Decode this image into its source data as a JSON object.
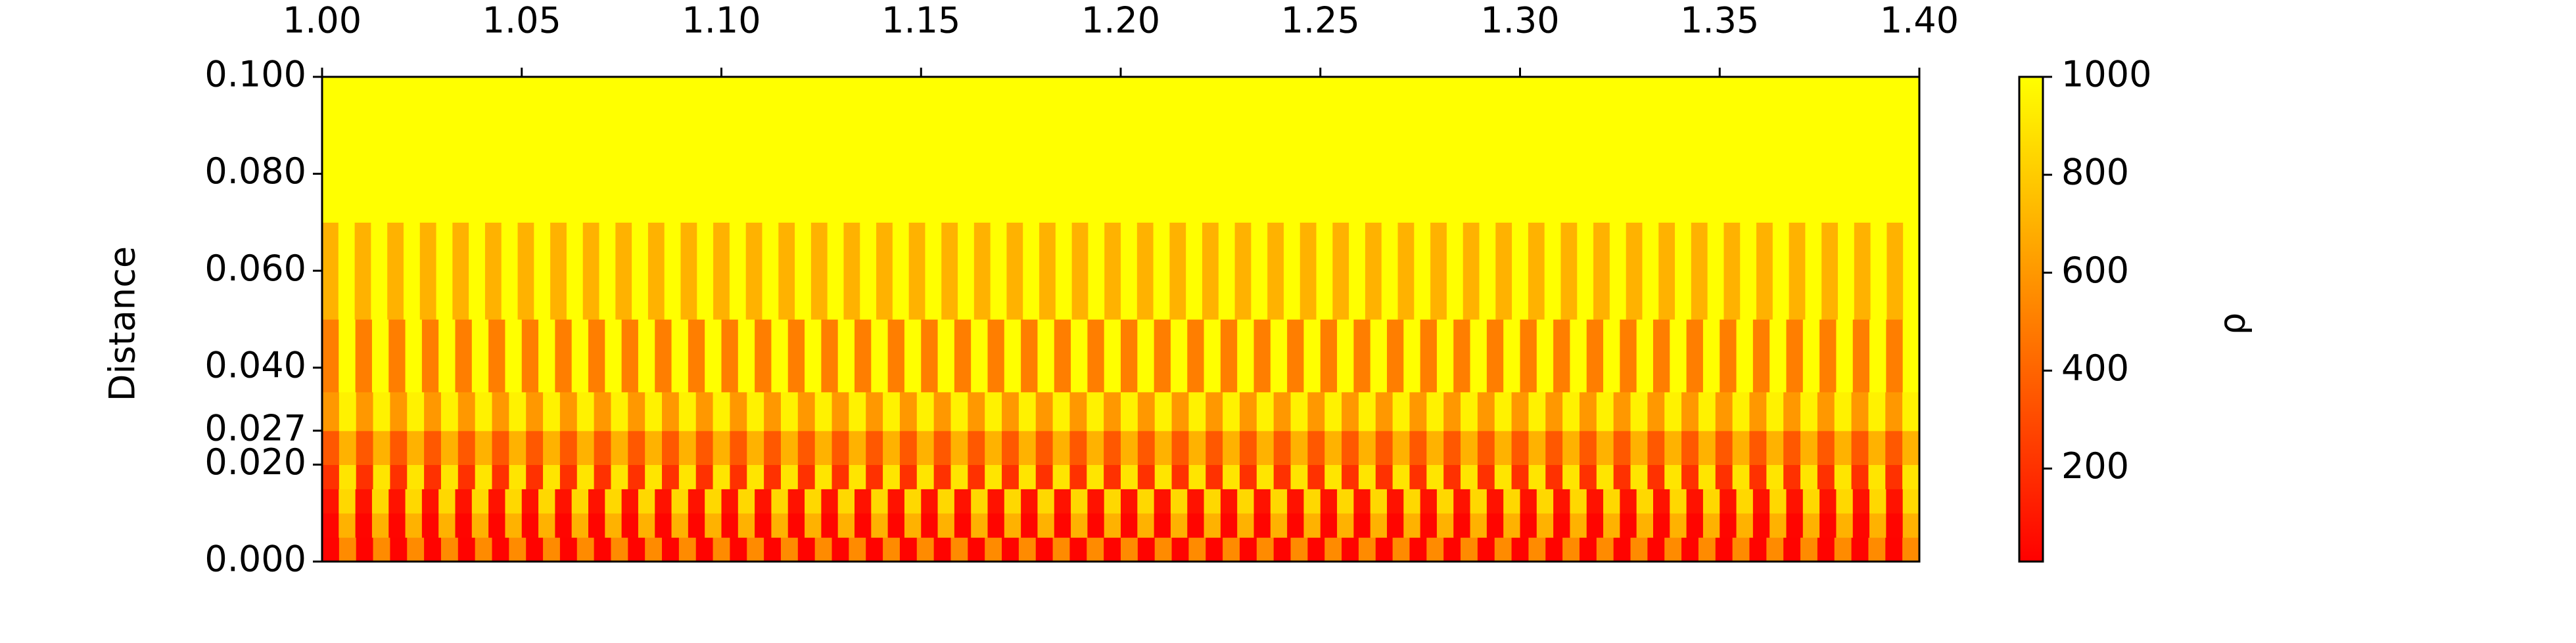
{
  "chart_data": {
    "type": "heatmap",
    "y_label": "Distance",
    "colorbar_label": "ρ",
    "xlim": [
      1.0,
      1.4
    ],
    "xticks": [
      {
        "value": 1.0,
        "label": "1.00"
      },
      {
        "value": 1.05,
        "label": "1.05"
      },
      {
        "value": 1.1,
        "label": "1.10"
      },
      {
        "value": 1.15,
        "label": "1.15"
      },
      {
        "value": 1.2,
        "label": "1.20"
      },
      {
        "value": 1.25,
        "label": "1.25"
      },
      {
        "value": 1.3,
        "label": "1.30"
      },
      {
        "value": 1.35,
        "label": "1.35"
      },
      {
        "value": 1.4,
        "label": "1.40"
      }
    ],
    "ylim": [
      0,
      0.1
    ],
    "yticks": [
      {
        "value": 0,
        "label": "0.000"
      },
      {
        "value": 0.02,
        "label": "0.020"
      },
      0.027,
      {
        "value": 0.04,
        "label": "0.040"
      },
      {
        "value": 0.06,
        "label": "0.060"
      },
      {
        "value": 0.08,
        "label": "0.080"
      },
      {
        "value": 0.1,
        "label": "0.100"
      }
    ],
    "y_edges": [
      0,
      0.005,
      0.01,
      0.015,
      0.02,
      0.027,
      0.035,
      0.05,
      0.07,
      0.1
    ],
    "clim": [
      10,
      1000
    ],
    "cticks": [
      200,
      400,
      600,
      800,
      1000
    ],
    "colormap": [
      "#ff0000",
      "#ffff00"
    ],
    "z": [
      [
        20,
        550,
        20,
        550,
        20,
        550,
        20,
        550,
        20,
        550,
        20,
        550,
        20,
        550,
        20,
        550,
        20,
        550,
        20,
        550,
        20,
        550,
        20,
        550,
        20,
        550,
        20,
        550,
        20,
        550,
        20,
        550,
        20,
        550,
        20,
        550,
        20,
        550,
        20,
        550,
        20,
        550,
        20,
        550,
        20,
        550,
        20,
        550,
        20,
        550,
        20,
        550,
        20,
        550,
        20,
        550,
        20,
        550,
        20,
        550,
        20,
        550,
        20,
        550,
        20,
        550,
        20,
        550,
        20,
        550,
        20,
        550,
        20,
        550,
        20,
        550,
        20,
        550,
        20,
        550,
        20,
        550,
        20,
        550,
        20,
        550,
        20,
        550,
        20,
        550,
        20,
        550,
        20,
        550
      ],
      [
        30,
        700,
        30,
        700,
        30,
        700,
        30,
        700,
        30,
        700,
        30,
        700,
        30,
        700,
        30,
        700,
        30,
        700,
        30,
        700,
        30,
        700,
        30,
        700,
        30,
        700,
        30,
        700,
        30,
        700,
        30,
        700,
        30,
        700,
        30,
        700,
        30,
        700,
        30,
        700,
        30,
        700,
        30,
        700,
        30,
        700,
        30,
        700,
        30,
        700,
        30,
        700,
        30,
        700,
        30,
        700,
        30,
        700,
        30,
        700,
        30,
        700,
        30,
        700,
        30,
        700,
        30,
        700,
        30,
        700,
        30,
        700,
        30,
        700,
        30,
        700,
        30,
        700,
        30,
        700,
        30,
        700,
        30,
        700,
        30,
        700,
        30,
        700,
        30,
        700,
        30,
        700,
        30,
        700,
        30,
        700
      ],
      [
        80,
        850,
        80,
        850,
        80,
        850,
        80,
        850,
        80,
        850,
        80,
        850,
        80,
        850,
        80,
        850,
        80,
        850,
        80,
        850,
        80,
        850,
        80,
        850,
        80,
        850,
        80,
        850,
        80,
        850,
        80,
        850,
        80,
        850,
        80,
        850,
        80,
        850,
        80,
        850,
        80,
        850,
        80,
        850,
        80,
        850,
        80,
        850,
        80,
        850,
        80,
        850,
        80,
        850,
        80,
        850,
        80,
        850,
        80,
        850,
        80,
        850,
        80,
        850,
        80,
        850,
        80,
        850,
        80,
        850,
        80,
        850,
        80,
        850,
        80,
        850,
        80,
        850,
        80,
        850,
        80,
        850,
        80,
        850,
        80,
        850,
        80,
        850,
        80,
        850,
        80,
        850,
        80,
        850,
        80,
        850
      ],
      [
        200,
        900,
        200,
        900,
        200,
        900,
        200,
        900,
        200,
        900,
        200,
        900,
        200,
        900,
        200,
        900,
        200,
        900,
        200,
        900,
        200,
        900,
        200,
        900,
        200,
        900,
        200,
        900,
        200,
        900,
        200,
        900,
        200,
        900,
        200,
        900,
        200,
        900,
        200,
        900,
        200,
        900,
        200,
        900,
        200,
        900,
        200,
        900,
        200,
        900,
        200,
        900,
        200,
        900,
        200,
        900,
        200,
        900,
        200,
        900,
        200,
        900,
        200,
        900,
        200,
        900,
        200,
        900,
        200,
        900,
        200,
        900,
        200,
        900,
        200,
        900,
        200,
        900,
        200,
        900,
        200,
        900,
        200,
        900,
        200,
        900,
        200,
        900,
        200,
        900,
        200,
        900,
        200,
        900
      ],
      [
        350,
        700,
        350,
        700,
        350,
        700,
        350,
        700,
        350,
        700,
        350,
        700,
        350,
        700,
        350,
        700,
        350,
        700,
        350,
        700,
        350,
        700,
        350,
        700,
        350,
        700,
        350,
        700,
        350,
        700,
        350,
        700,
        350,
        700,
        350,
        700,
        350,
        700,
        350,
        700,
        350,
        700,
        350,
        700,
        350,
        700,
        350,
        700,
        350,
        700,
        350,
        700,
        350,
        700,
        350,
        700,
        350,
        700,
        350,
        700,
        350,
        700,
        350,
        700,
        350,
        700,
        350,
        700,
        350,
        700,
        350,
        700,
        350,
        700,
        350,
        700,
        350,
        700,
        350,
        700,
        350,
        700,
        350,
        700,
        350,
        700,
        350,
        700,
        350,
        700,
        350,
        700,
        350,
        700
      ],
      [
        600,
        950,
        600,
        950,
        600,
        950,
        600,
        950,
        600,
        950,
        600,
        950,
        600,
        950,
        600,
        950,
        600,
        950,
        600,
        950,
        600,
        950,
        600,
        950,
        600,
        950,
        600,
        950,
        600,
        950,
        600,
        950,
        600,
        950,
        600,
        950,
        600,
        950,
        600,
        950,
        600,
        950,
        600,
        950,
        600,
        950,
        600,
        950,
        600,
        950,
        600,
        950,
        600,
        950,
        600,
        950,
        600,
        950,
        600,
        950,
        600,
        950,
        600,
        950,
        600,
        950,
        600,
        950,
        600,
        950,
        600,
        950,
        600,
        950,
        600,
        950,
        600,
        950,
        600,
        950,
        600,
        950,
        600,
        950,
        600,
        950,
        600,
        950,
        600,
        950,
        600,
        950,
        600,
        950
      ],
      [
        500,
        1000,
        500,
        1000,
        500,
        1000,
        500,
        1000,
        500,
        1000,
        500,
        1000,
        500,
        1000,
        500,
        1000,
        500,
        1000,
        500,
        1000,
        500,
        1000,
        500,
        1000,
        500,
        1000,
        500,
        1000,
        500,
        1000,
        500,
        1000,
        500,
        1000,
        500,
        1000,
        500,
        1000,
        500,
        1000,
        500,
        1000,
        500,
        1000,
        500,
        1000,
        500,
        1000,
        500,
        1000,
        500,
        1000,
        500,
        1000,
        500,
        1000,
        500,
        1000,
        500,
        1000,
        500,
        1000,
        500,
        1000,
        500,
        1000,
        500,
        1000,
        500,
        1000,
        500,
        1000,
        500,
        1000,
        500,
        1000,
        500,
        1000,
        500,
        1000,
        500,
        1000,
        500,
        1000,
        500,
        1000,
        500,
        1000,
        500,
        1000,
        500,
        1000,
        500,
        1000,
        500,
        1000
      ],
      [
        700,
        1000,
        700,
        1000,
        700,
        1000,
        700,
        1000,
        700,
        1000,
        700,
        1000,
        700,
        1000,
        700,
        1000,
        700,
        1000,
        700,
        1000,
        700,
        1000,
        700,
        1000,
        700,
        1000,
        700,
        1000,
        700,
        1000,
        700,
        1000,
        700,
        1000,
        700,
        1000,
        700,
        1000,
        700,
        1000,
        700,
        1000,
        700,
        1000,
        700,
        1000,
        700,
        1000,
        700,
        1000,
        700,
        1000,
        700,
        1000,
        700,
        1000,
        700,
        1000,
        700,
        1000,
        700,
        1000,
        700,
        1000,
        700,
        1000,
        700,
        1000,
        700,
        1000,
        700,
        1000,
        700,
        1000,
        700,
        1000,
        700,
        1000,
        700,
        1000,
        700,
        1000,
        700,
        1000,
        700,
        1000,
        700,
        1000,
        700,
        1000,
        700,
        1000,
        700,
        1000,
        700,
        1000,
        700,
        1000
      ],
      [
        1000,
        1000,
        1000,
        1000,
        1000,
        1000,
        1000,
        1000,
        1000,
        1000,
        1000,
        1000,
        1000,
        1000,
        1000,
        1000,
        1000,
        1000,
        1000,
        1000,
        1000,
        1000,
        1000,
        1000,
        1000,
        1000,
        1000,
        1000,
        1000,
        1000,
        1000,
        1000,
        1000,
        1000,
        1000,
        1000,
        1000,
        1000,
        1000,
        1000,
        1000,
        1000,
        1000,
        1000,
        1000,
        1000,
        1000,
        1000,
        1000,
        1000,
        1000,
        1000,
        1000,
        1000,
        1000,
        1000,
        1000,
        1000,
        1000,
        1000,
        1000,
        1000,
        1000,
        1000,
        1000,
        1000,
        1000,
        1000,
        1000,
        1000,
        1000,
        1000,
        1000,
        1000,
        1000,
        1000,
        1000,
        1000,
        1000,
        1000,
        1000,
        1000,
        1000,
        1000,
        1000,
        1000,
        1000,
        1000,
        1000,
        1000,
        1000,
        1000,
        1000,
        1000,
        1000,
        1000
      ]
    ]
  }
}
